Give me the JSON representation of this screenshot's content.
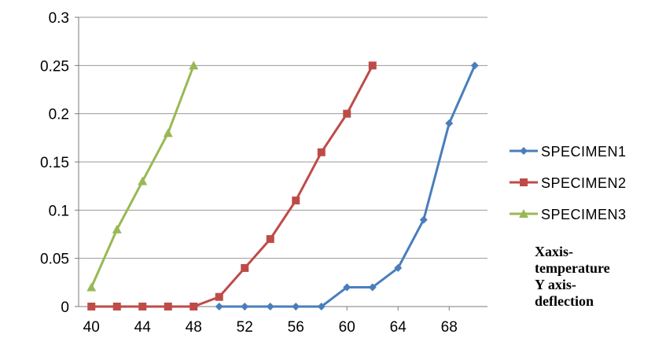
{
  "chart_data": {
    "type": "line",
    "title": "",
    "xlabel": "",
    "ylabel": "",
    "x": [
      40,
      42,
      44,
      46,
      48,
      50,
      52,
      54,
      56,
      58,
      60,
      62,
      64,
      66,
      68,
      70
    ],
    "x_tick_labels": [
      "40",
      "44",
      "48",
      "52",
      "56",
      "60",
      "64",
      "68"
    ],
    "y_tick_labels": [
      "0",
      "0.05",
      "0.1",
      "0.15",
      "0.2",
      "0.25",
      "0.3"
    ],
    "ylim": [
      0,
      0.3
    ],
    "xlim": [
      39,
      71
    ],
    "grid": "horizontal",
    "legend_position": "right",
    "series": [
      {
        "name": "SPECIMEN1",
        "color": "#4a7ebb",
        "marker": "diamond",
        "x": [
          50,
          52,
          54,
          56,
          58,
          60,
          62,
          64,
          66,
          68,
          70
        ],
        "values": [
          0,
          0,
          0,
          0,
          0,
          0.02,
          0.02,
          0.04,
          0.09,
          0.19,
          0.25
        ]
      },
      {
        "name": "SPECIMEN2",
        "color": "#be4b48",
        "marker": "square",
        "x": [
          40,
          42,
          44,
          46,
          48,
          50,
          52,
          54,
          56,
          58,
          60,
          62
        ],
        "values": [
          0,
          0,
          0,
          0,
          0,
          0.01,
          0.04,
          0.07,
          0.11,
          0.16,
          0.2,
          0.25
        ]
      },
      {
        "name": "SPECIMEN3",
        "color": "#98b954",
        "marker": "triangle",
        "x": [
          40,
          42,
          44,
          46,
          48
        ],
        "values": [
          0.02,
          0.08,
          0.13,
          0.18,
          0.25
        ]
      }
    ],
    "annotation": [
      "Xaxis-",
      "temperature",
      "Y axis-",
      "deflection"
    ]
  }
}
